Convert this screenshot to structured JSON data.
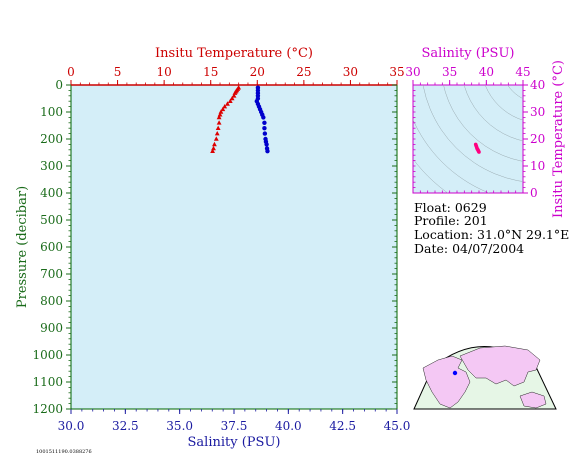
{
  "chart_data": [
    {
      "type": "scatter",
      "name": "profile",
      "top_axis": {
        "label": "Insitu Temperature (°C)",
        "range": [
          0,
          35
        ],
        "ticks": [
          "0",
          "5",
          "10",
          "15",
          "20",
          "25",
          "30",
          "35"
        ]
      },
      "bottom_axis": {
        "label": "Salinity (PSU)",
        "range": [
          30.0,
          45.0
        ],
        "ticks": [
          "30.0",
          "32.5",
          "35.0",
          "37.5",
          "40.0",
          "42.5",
          "45.0"
        ]
      },
      "left_axis": {
        "label": "Pressure (decibar)",
        "range": [
          0,
          1200
        ],
        "inverted": true,
        "ticks": [
          "0",
          "100",
          "200",
          "300",
          "400",
          "500",
          "600",
          "700",
          "800",
          "900",
          "1000",
          "1100",
          "1200"
        ]
      },
      "series": [
        {
          "color": "#dd0000",
          "marker": "triangle",
          "axis": "temperature",
          "x": [
            18.0,
            17.9,
            17.8,
            17.7,
            17.6,
            17.5,
            17.3,
            17.1,
            16.8,
            16.5,
            16.3,
            16.1,
            16.0,
            15.9,
            15.9,
            15.8,
            15.7,
            15.6,
            15.4,
            15.3,
            15.2
          ],
          "y": [
            10,
            15,
            20,
            25,
            30,
            40,
            50,
            60,
            70,
            80,
            90,
            100,
            110,
            120,
            140,
            160,
            180,
            200,
            220,
            235,
            245
          ]
        },
        {
          "color": "#0000cc",
          "marker": "circle",
          "axis": "salinity",
          "x": [
            38.6,
            38.6,
            38.6,
            38.6,
            38.6,
            38.55,
            38.6,
            38.65,
            38.7,
            38.75,
            38.8,
            38.85,
            38.9,
            38.9,
            38.92,
            38.95,
            38.97,
            39.0,
            39.02,
            39.04
          ],
          "y": [
            10,
            20,
            30,
            40,
            50,
            60,
            70,
            80,
            90,
            100,
            110,
            120,
            140,
            160,
            180,
            200,
            210,
            220,
            235,
            245
          ]
        }
      ]
    },
    {
      "type": "scatter",
      "name": "ts-diagram",
      "top_axis": {
        "label": "Salinity (PSU)",
        "range": [
          30,
          45
        ],
        "ticks": [
          "30",
          "35",
          "40",
          "45"
        ]
      },
      "right_axis": {
        "label": "Insitu Temperature (°C)",
        "range": [
          0,
          40
        ],
        "ticks": [
          "0",
          "10",
          "20",
          "30",
          "40"
        ]
      },
      "series": [
        {
          "color": "#ff0080",
          "x": [
            38.55,
            38.6,
            38.65,
            38.7,
            38.75,
            38.8,
            38.85,
            38.9,
            38.95,
            39.0
          ],
          "y": [
            18.0,
            17.6,
            17.2,
            16.8,
            16.4,
            16.2,
            16.0,
            15.7,
            15.4,
            15.2
          ]
        }
      ]
    }
  ],
  "info": {
    "float": "Float:  0629",
    "profile": "Profile:  201",
    "location": "Location:  31.0°N  29.1°E",
    "date": "Date:  04/07/2004"
  },
  "footer_id": "1001511190.0388276",
  "colors": {
    "plot_bg": "#d4eef8",
    "map_land": "#f4c8f4",
    "map_ocean": "#e6f6e6",
    "marker": "#0000ff"
  }
}
